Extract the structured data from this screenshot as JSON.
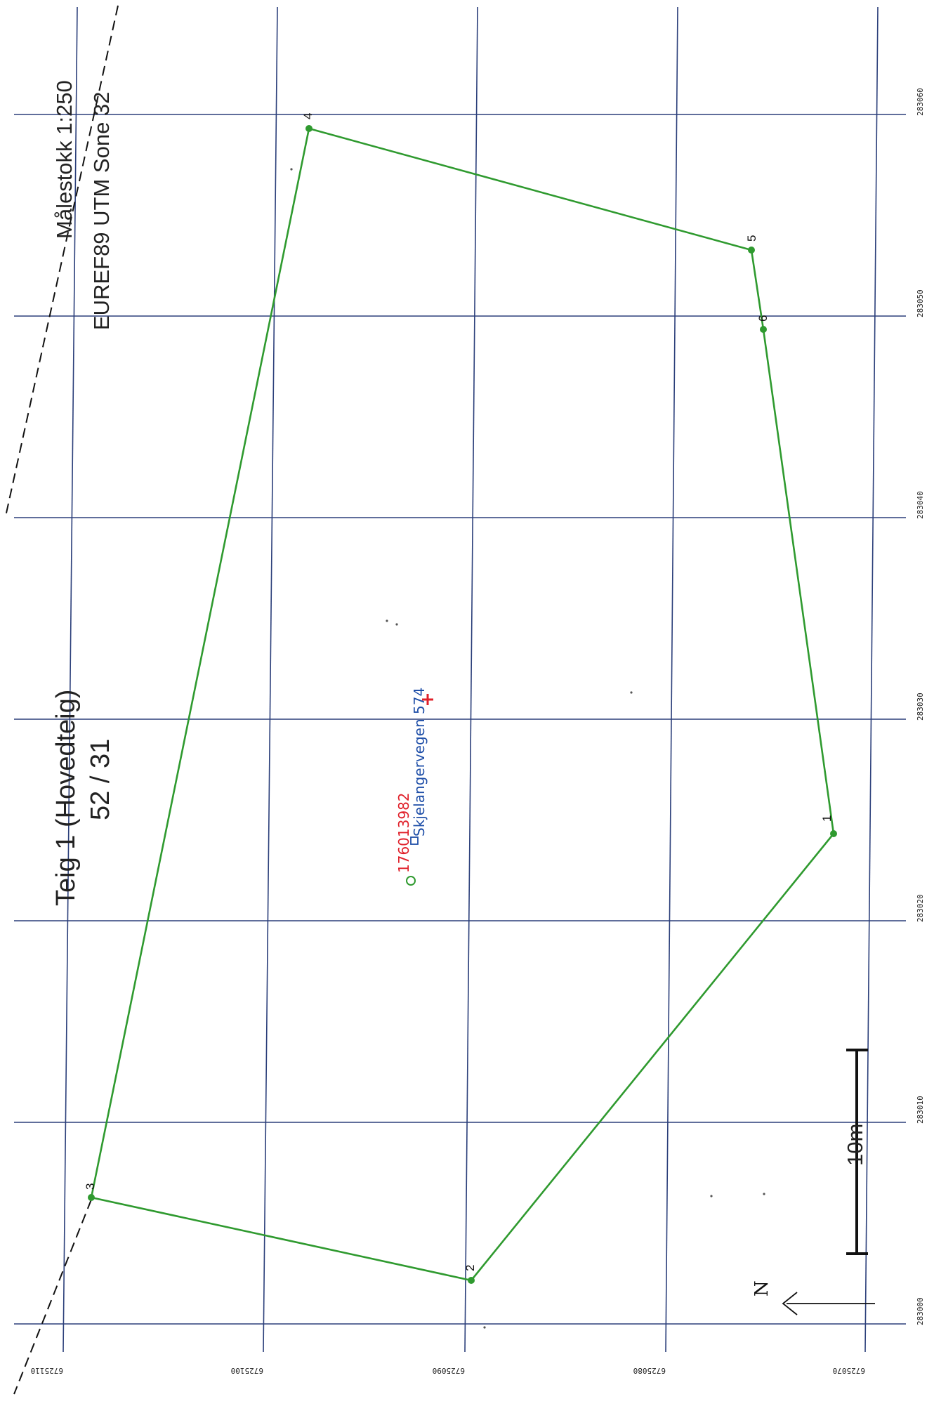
{
  "map": {
    "title": "Teig 1 (Hovedteig)",
    "parcel_id": "52 / 31",
    "scale_text": "Målestokk 1:250",
    "crs_text": "EUREF89 UTM Sone 32",
    "scale_bar_label": "10m",
    "north_label": "N",
    "matrikkel_number": "176013982",
    "address_label": "Skjelangervegen 574",
    "colors": {
      "grid": "#2b3f7a",
      "boundary": "#2f9a2f",
      "matrikkel": "#e0202a",
      "address": "#1f4fa8"
    },
    "easting_labels": [
      "283000",
      "283010",
      "283020",
      "283030",
      "283040",
      "283050",
      "283060"
    ],
    "northing_labels": [
      "6725110",
      "6725100",
      "6725090",
      "6725080",
      "6725070"
    ],
    "boundary_points": [
      {
        "label": "1"
      },
      {
        "label": "2"
      },
      {
        "label": "3"
      },
      {
        "label": "4"
      },
      {
        "label": "5"
      },
      {
        "label": "6"
      }
    ]
  }
}
